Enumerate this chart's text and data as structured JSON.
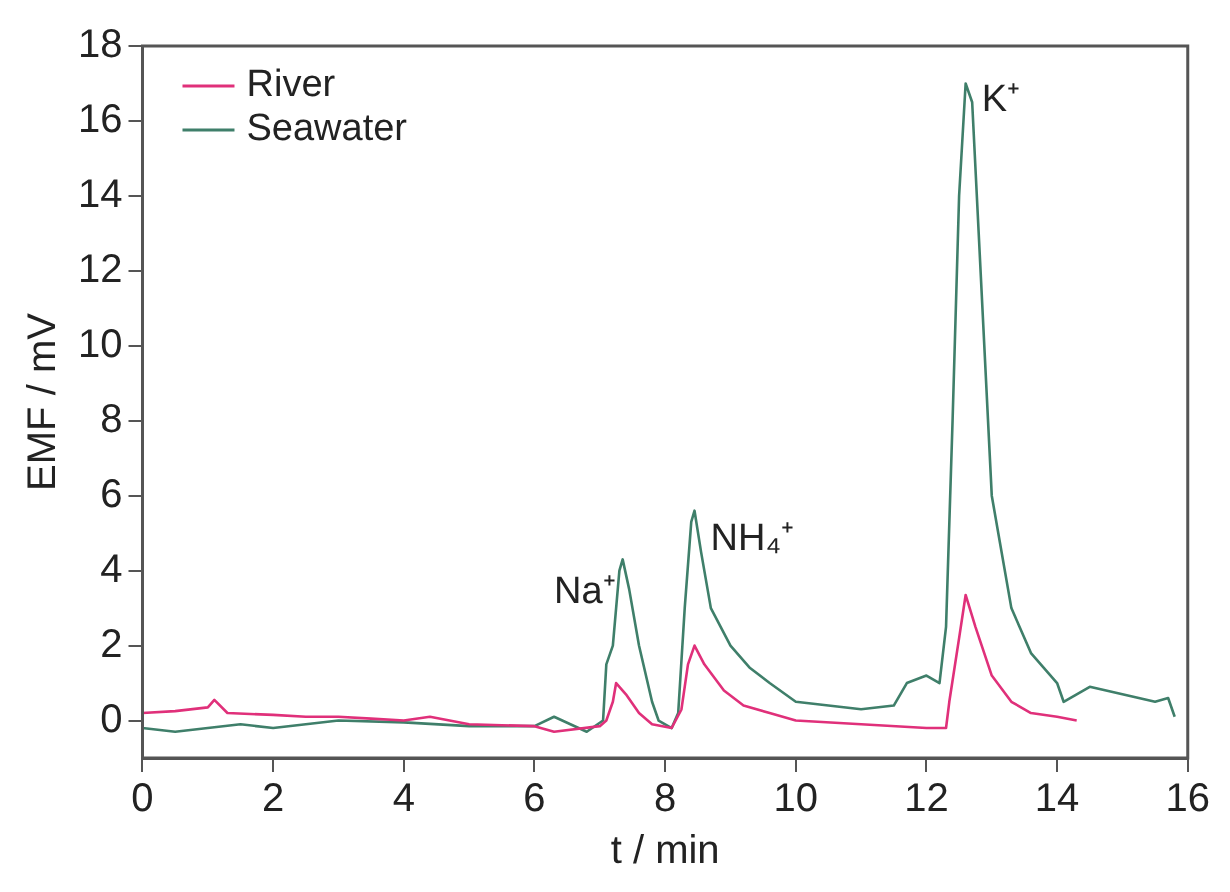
{
  "chart_data": {
    "type": "line",
    "xlabel": "t / min",
    "ylabel": "EMF / mV",
    "xlim": [
      0,
      16
    ],
    "xticks": [
      0,
      2,
      4,
      6,
      8,
      10,
      12,
      14,
      16
    ],
    "ylim": [
      -1,
      18
    ],
    "yticks": [
      0,
      2,
      4,
      6,
      8,
      10,
      12,
      14,
      16,
      18
    ],
    "grid": false,
    "legend": "top left",
    "marker": "none",
    "line_style": "solid",
    "annotations": [
      {
        "text": "Na⁺",
        "x": 7.35,
        "y": 4.3
      },
      {
        "text": "NH₄⁺",
        "x": 8.45,
        "y": 5.6
      },
      {
        "text": "K⁺",
        "x": 12.6,
        "y": 17
      }
    ],
    "series": [
      {
        "name": "River",
        "color": "#e0307a",
        "x": [
          0,
          0.5,
          1,
          1.1,
          1.3,
          2,
          2.5,
          3,
          3.5,
          4,
          4.4,
          5,
          6,
          6.3,
          7,
          7.1,
          7.2,
          7.25,
          7.4,
          7.6,
          7.8,
          8.1,
          8.25,
          8.35,
          8.45,
          8.6,
          8.9,
          9.2,
          9.6,
          10,
          11,
          12,
          12.3,
          12.35,
          12.5,
          12.6,
          12.75,
          13,
          13.3,
          13.6,
          14,
          14.3
        ],
        "values": [
          0.2,
          0.25,
          0.35,
          0.55,
          0.2,
          0.15,
          0.1,
          0.1,
          0.05,
          0,
          0.1,
          -0.1,
          -0.15,
          -0.3,
          -0.15,
          0,
          0.5,
          1,
          0.7,
          0.2,
          -0.1,
          -0.2,
          0.3,
          1.5,
          2,
          1.5,
          0.8,
          0.4,
          0.2,
          0,
          -0.1,
          -0.2,
          -0.2,
          0.5,
          2.2,
          3.35,
          2.5,
          1.2,
          0.5,
          0.2,
          0.1,
          0
        ]
      },
      {
        "name": "Seawater",
        "color": "#3f7f6a",
        "x": [
          0,
          0.5,
          1,
          1.5,
          2,
          2.5,
          3,
          4,
          5,
          6,
          6.3,
          6.8,
          7.05,
          7.1,
          7.2,
          7.3,
          7.35,
          7.45,
          7.6,
          7.8,
          7.9,
          8.1,
          8.2,
          8.3,
          8.4,
          8.45,
          8.55,
          8.7,
          9,
          9.3,
          9.6,
          10,
          10.5,
          11,
          11.5,
          11.7,
          12,
          12.2,
          12.3,
          12.4,
          12.5,
          12.6,
          12.7,
          12.8,
          13,
          13.1,
          13.3,
          13.6,
          14,
          14.1,
          14.5,
          15,
          15.5,
          15.7,
          15.8
        ],
        "values": [
          -0.2,
          -0.3,
          -0.2,
          -0.1,
          -0.2,
          -0.1,
          0,
          -0.05,
          -0.15,
          -0.15,
          0.1,
          -0.3,
          0,
          1.5,
          2,
          4,
          4.3,
          3.5,
          2,
          0.5,
          0,
          -0.2,
          0.2,
          3,
          5.3,
          5.6,
          4.5,
          3,
          2,
          1.4,
          1,
          0.5,
          0.4,
          0.3,
          0.4,
          1,
          1.2,
          1,
          2.5,
          8,
          14,
          17,
          16.5,
          13,
          6,
          5,
          3,
          1.8,
          1,
          0.5,
          0.9,
          0.7,
          0.5,
          0.6,
          0.1
        ]
      }
    ]
  }
}
